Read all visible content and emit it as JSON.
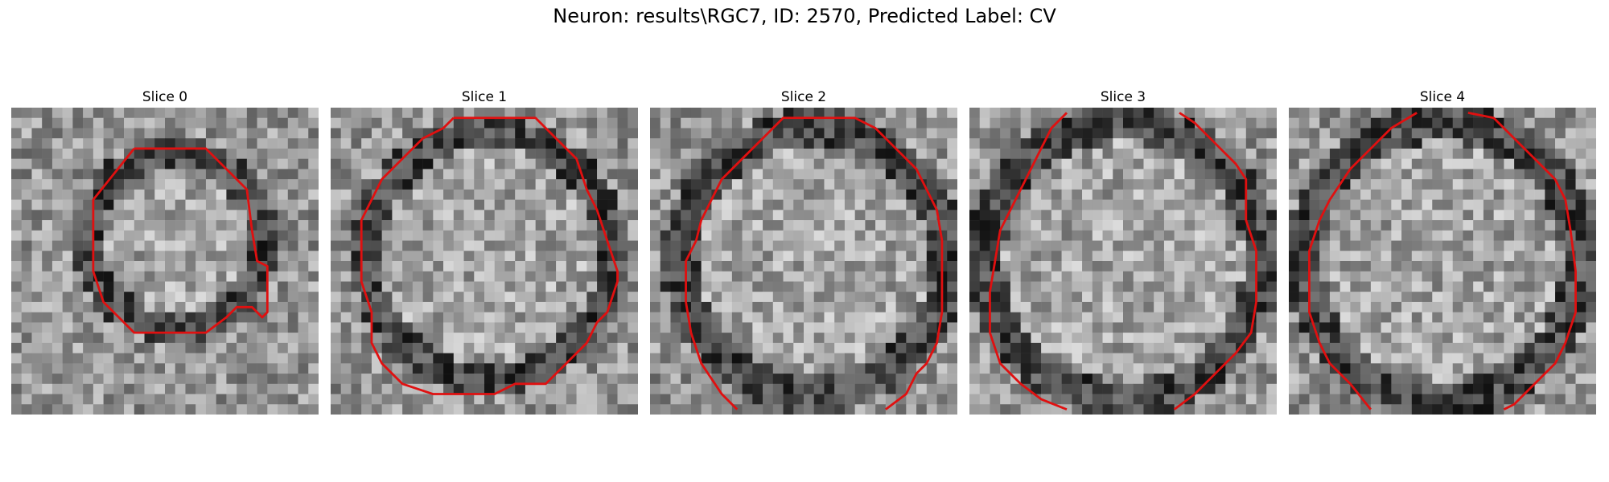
{
  "figure": {
    "title": "Neuron: results\\RGC7, ID: 2570, Predicted Label: CV"
  },
  "panels": [
    {
      "title": "Slice 0"
    },
    {
      "title": "Slice 1"
    },
    {
      "title": "Slice 2"
    },
    {
      "title": "Slice 3"
    },
    {
      "title": "Slice 4"
    }
  ],
  "colors": {
    "contour": "#e01010",
    "background": "#ffffff"
  }
}
